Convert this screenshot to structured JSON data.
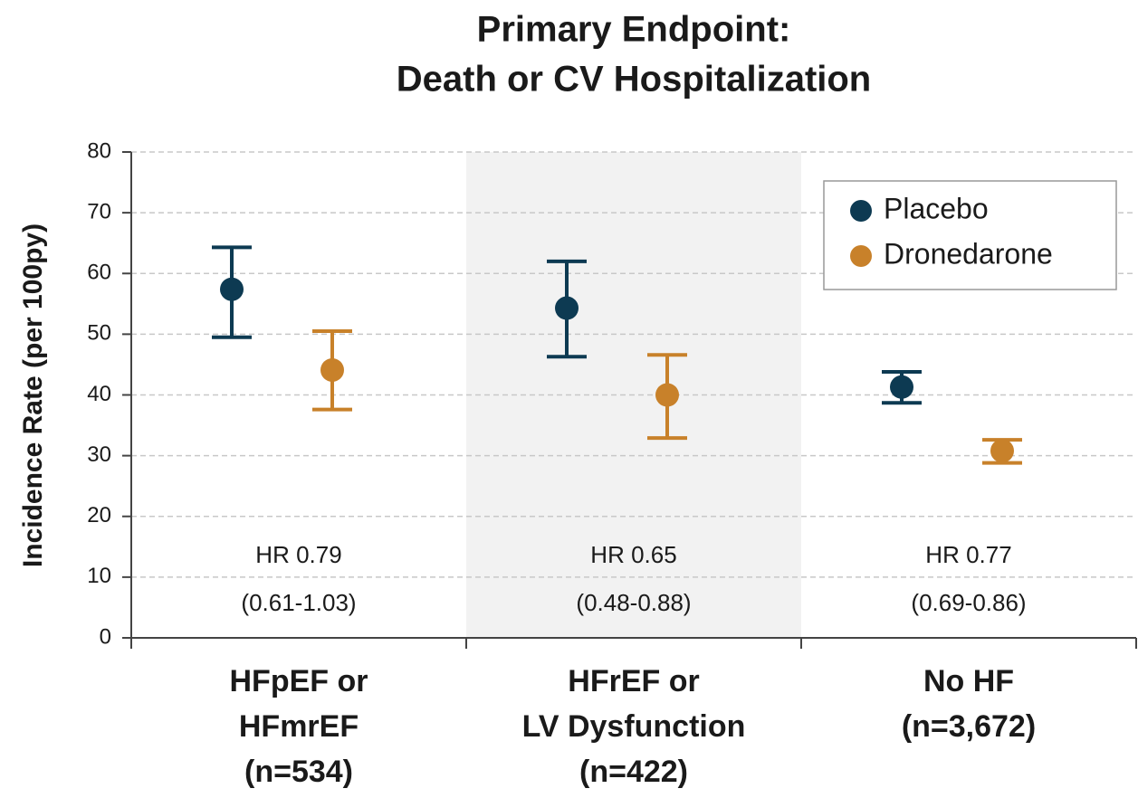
{
  "chart_data": {
    "type": "errorbar",
    "title": [
      "Primary Endpoint:",
      "Death or CV Hospitalization"
    ],
    "ylabel": "Incidence Rate (per 100py)",
    "categories": [
      [
        "HFpEF or",
        "HFmrEF",
        "(n=534)"
      ],
      [
        "HFrEF or",
        "LV Dysfunction",
        "(n=422)"
      ],
      [
        "No HF",
        "(n=3,672)"
      ]
    ],
    "series": [
      {
        "name": "Placebo",
        "color": "#0d3a52",
        "values": [
          57.4,
          54.3,
          41.3
        ],
        "lower": [
          49.5,
          46.3,
          38.7
        ],
        "upper": [
          64.3,
          62.0,
          43.8
        ]
      },
      {
        "name": "Dronedarone",
        "color": "#c8812a",
        "values": [
          44.1,
          40.0,
          30.8
        ],
        "lower": [
          37.6,
          32.9,
          28.8
        ],
        "upper": [
          50.5,
          46.6,
          32.6
        ]
      }
    ],
    "annotations": [
      [
        "HR 0.79",
        "(0.61-1.03)"
      ],
      [
        "HR 0.65",
        "(0.48-0.88)"
      ],
      [
        "HR 0.77",
        "(0.69-0.86)"
      ]
    ],
    "shaded_categories": [
      1
    ],
    "ylim": [
      0,
      80
    ],
    "yticks": [
      0,
      10,
      20,
      30,
      40,
      50,
      60,
      70,
      80
    ],
    "grid": true,
    "legend": "upper right"
  }
}
